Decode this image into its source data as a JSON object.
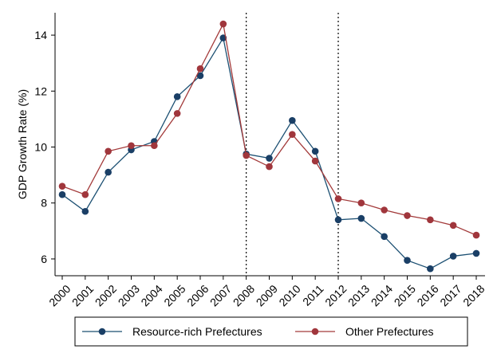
{
  "chart_data": {
    "type": "line",
    "title": "",
    "xlabel": "",
    "ylabel": "GDP Growth Rate (%)",
    "x": [
      "2000",
      "2001",
      "2002",
      "2003",
      "2004",
      "2005",
      "2006",
      "2007",
      "2008",
      "2009",
      "2010",
      "2011",
      "2012",
      "2013",
      "2014",
      "2015",
      "2016",
      "2017",
      "2018"
    ],
    "ylim": [
      5.4,
      14.8
    ],
    "yticks": [
      6,
      8,
      10,
      12,
      14
    ],
    "grid": false,
    "vertical_lines": [
      "2008",
      "2012"
    ],
    "legend_position": "bottom",
    "series": [
      {
        "name": "Resource-rich Prefectures",
        "color": "#1b4f72",
        "marker_color": "#1a3f66",
        "values": [
          8.3,
          7.7,
          9.1,
          9.9,
          10.2,
          11.8,
          12.55,
          13.9,
          9.75,
          9.6,
          10.95,
          9.85,
          7.4,
          7.45,
          6.8,
          5.95,
          5.65,
          6.1,
          6.2
        ]
      },
      {
        "name": "Other Prefectures",
        "color": "#a33a3a",
        "marker_color": "#a0363c",
        "values": [
          8.6,
          8.3,
          9.85,
          10.05,
          10.05,
          11.2,
          12.8,
          14.4,
          9.7,
          9.3,
          10.45,
          9.5,
          8.15,
          8.0,
          7.75,
          7.55,
          7.4,
          7.2,
          6.85
        ]
      }
    ]
  }
}
